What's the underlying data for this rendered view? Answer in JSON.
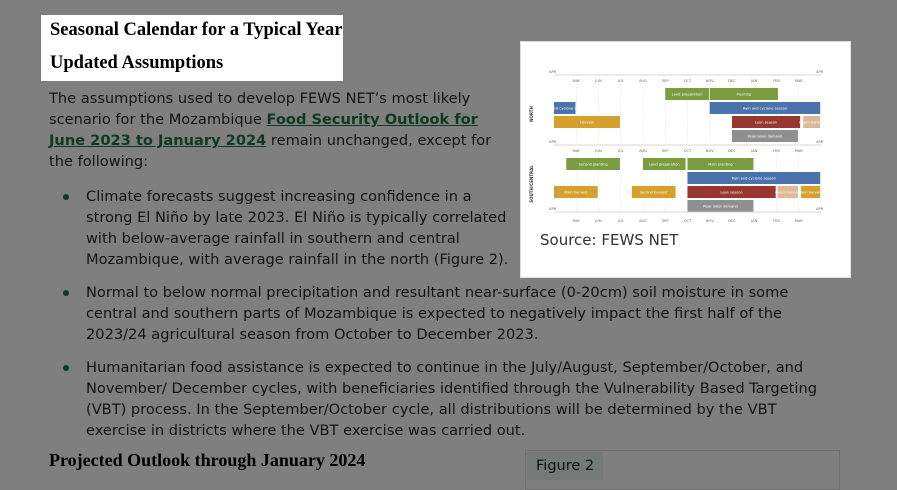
{
  "headings": {
    "seasonal_calendar": "Seasonal Calendar for a Typical Year",
    "updated_assumptions": "Updated Assumptions",
    "projected_outlook": "Projected Outlook through January 2024"
  },
  "intro": {
    "before": "The assumptions used to develop FEWS NET’s most likely scenario for the Mozambique ",
    "link": "Food Security Outlook for June 2023 to January 2024",
    "after": " remain unchanged, except for the following:"
  },
  "bullets": [
    "Climate forecasts suggest increasing confidence in a strong El Niño by late 2023. El Niño is typically correlated with below-average rainfall in southern and central Mozambique, with average rainfall in the north (Figure 2).",
    "Normal to below normal precipitation and resultant near-surface (0-20cm) soil moisture in some central and southern parts of Mozambique is expected to negatively impact the first half of the 2023/24 agricultural season from October to December 2023.",
    "Humanitarian food assistance is expected to continue in the July/August, September/October, and November/ December cycles, with beneficiaries identified through the Vulnerability Based Targeting (VBT) process. In the September/October cycle, all distributions will be determined by the VBT exercise in districts where the VBT exercise was carried out."
  ],
  "figure": {
    "source": "Source: FEWS NET",
    "calendar": {
      "months": [
        "MAY",
        "JUN",
        "JUL",
        "AUG",
        "SEP",
        "OCT",
        "NOV",
        "DEC",
        "JAN",
        "FEB",
        "MAR"
      ],
      "end_label": "APR",
      "colors": {
        "planting": "#7b9d3f",
        "rain": "#4b73ab",
        "harvest": "#d5a02b",
        "lean": "#983630",
        "green": "#dcb897",
        "labor": "#8f8f8f"
      },
      "regions": [
        {
          "name": "NORTH",
          "bars": [
            {
              "label": "Land preparation",
              "start": 5,
              "end": 7,
              "row": 0,
              "kind": "planting"
            },
            {
              "label": "Planting",
              "start": 7,
              "end": 10.1,
              "row": 0,
              "kind": "planting"
            },
            {
              "label": "Rain and cyclone season",
              "start": 0,
              "end": 1,
              "row": 1,
              "kind": "rain"
            },
            {
              "label": "Rain and cyclone season",
              "start": 7,
              "end": 12,
              "row": 1,
              "kind": "rain"
            },
            {
              "label": "Harvest",
              "start": 0,
              "end": 3,
              "row": 2,
              "kind": "harvest"
            },
            {
              "label": "Lean season",
              "start": 8,
              "end": 11.1,
              "row": 2,
              "kind": "lean"
            },
            {
              "label": "Green harvest",
              "start": 11.2,
              "end": 12,
              "row": 2,
              "kind": "green"
            },
            {
              "label": "Peak labor demand",
              "start": 8,
              "end": 11,
              "row": 3,
              "kind": "labor"
            }
          ]
        },
        {
          "name": "SOUTH/CENTRAL",
          "bars": [
            {
              "label": "Second planting",
              "start": 0.55,
              "end": 3,
              "row": 0,
              "kind": "planting"
            },
            {
              "label": "Land preparation",
              "start": 4,
              "end": 5.95,
              "row": 0,
              "kind": "planting"
            },
            {
              "label": "Main planting",
              "start": 6,
              "end": 9,
              "row": 0,
              "kind": "planting"
            },
            {
              "label": "Rain and cyclone season",
              "start": 6,
              "end": 12,
              "row": 1,
              "kind": "rain"
            },
            {
              "label": "Main harvest",
              "start": 0,
              "end": 2,
              "row": 2,
              "kind": "harvest"
            },
            {
              "label": "Second harvest",
              "start": 3.5,
              "end": 5.5,
              "row": 2,
              "kind": "harvest"
            },
            {
              "label": "Lean season",
              "start": 6,
              "end": 10,
              "row": 2,
              "kind": "lean"
            },
            {
              "label": "Green harvest",
              "start": 10.05,
              "end": 11,
              "row": 2,
              "kind": "green"
            },
            {
              "label": "Main harvest",
              "start": 11.1,
              "end": 12,
              "row": 2,
              "kind": "harvest"
            },
            {
              "label": "Peak labor demand",
              "start": 6,
              "end": 9,
              "row": 3,
              "kind": "labor"
            }
          ]
        }
      ]
    }
  },
  "figure2": {
    "label": "Figure 2"
  }
}
